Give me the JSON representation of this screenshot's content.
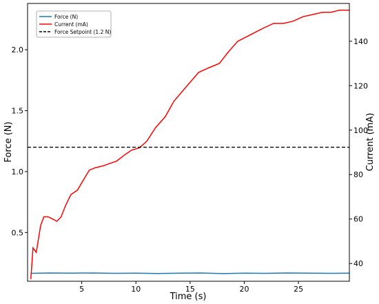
{
  "chart_data": {
    "type": "line",
    "xlabel": "Time (s)",
    "ylabel_left": "Force (N)",
    "ylabel_right": "Current (mA)",
    "xlim": [
      0,
      29.7
    ],
    "ylim_left": [
      0.1,
      2.38
    ],
    "ylim_right": [
      32,
      157
    ],
    "x_ticks": [
      5,
      10,
      15,
      20,
      25
    ],
    "y_ticks_left": [
      0.5,
      1.0,
      1.5,
      2.0
    ],
    "y_ticks_right": [
      40,
      60,
      80,
      100,
      120,
      140
    ],
    "grid": false,
    "legend_position": "top-left",
    "legend": [
      {
        "label": "Force (N)",
        "color": "#1f77b4",
        "style": "solid"
      },
      {
        "label": "Current (mA)",
        "color": "#ff0000",
        "style": "solid"
      },
      {
        "label": "Force Setpoint (1.2 N)",
        "color": "#000000",
        "style": "dashed"
      }
    ],
    "series": [
      {
        "name": "Force (N)",
        "axis": "left",
        "color": "#1f77b4",
        "x": [
          0.3,
          2,
          4,
          6,
          8,
          10,
          12,
          14,
          16,
          18,
          20,
          22,
          24,
          26,
          28,
          29.7
        ],
        "values": [
          0.165,
          0.168,
          0.166,
          0.168,
          0.165,
          0.166,
          0.164,
          0.166,
          0.168,
          0.163,
          0.166,
          0.165,
          0.168,
          0.167,
          0.165,
          0.166
        ]
      },
      {
        "name": "Current (mA)",
        "axis": "right",
        "color": "#ff0000",
        "x": [
          0.3,
          0.5,
          0.8,
          1.2,
          1.5,
          1.9,
          2.3,
          2.7,
          3.1,
          3.5,
          4.0,
          4.6,
          5.2,
          5.7,
          6.2,
          7.0,
          7.6,
          8.2,
          9.0,
          9.6,
          10.3,
          11.0,
          11.8,
          12.7,
          13.5,
          14.2,
          14.9,
          15.8,
          16.7,
          17.7,
          18.5,
          19.4,
          20.2,
          21.0,
          21.8,
          22.7,
          23.6,
          24.5,
          25.4,
          26.3,
          27.2,
          28.0,
          28.8,
          29.7
        ],
        "values": [
          33,
          47,
          45,
          57,
          61,
          61,
          60,
          59,
          61,
          66,
          71,
          73,
          78,
          82,
          83,
          84,
          85,
          86,
          89,
          91,
          92,
          95,
          101,
          106,
          113,
          117,
          121,
          126,
          128,
          130,
          135,
          140,
          142,
          144,
          146,
          148,
          148,
          149,
          151,
          152,
          153,
          153,
          154,
          154
        ]
      },
      {
        "name": "Force Setpoint (1.2 N)",
        "axis": "left",
        "color": "#000000",
        "style": "dashed",
        "x": [
          0,
          29.7
        ],
        "values": [
          1.2,
          1.2
        ]
      }
    ]
  }
}
